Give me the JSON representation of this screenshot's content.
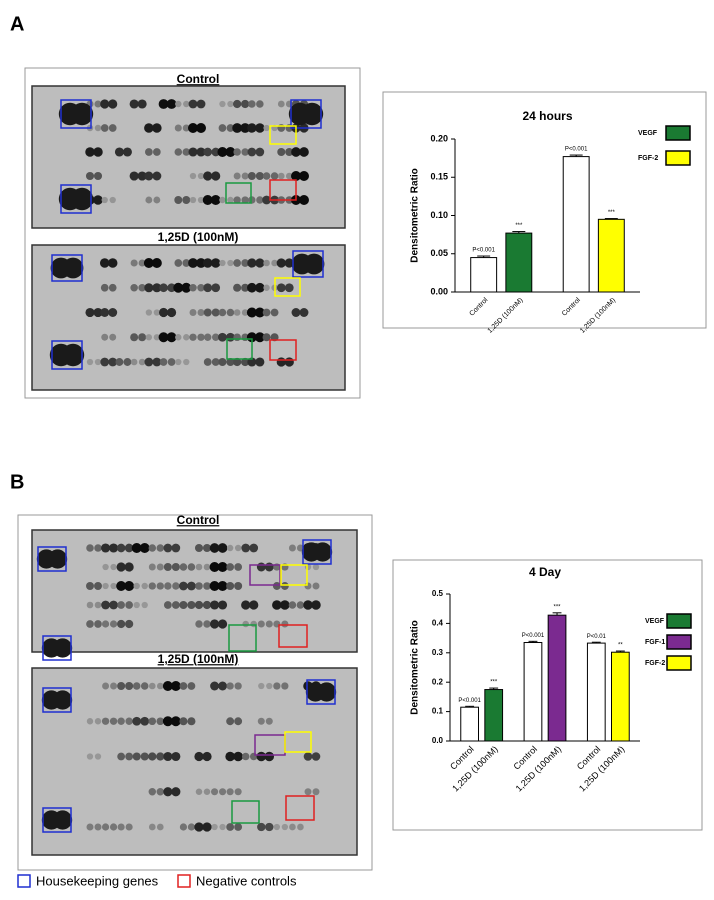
{
  "panel_labels": [
    "A",
    "B"
  ],
  "blot_titles": [
    [
      "Control",
      "1,25D (100nM)"
    ],
    [
      "Control",
      "1,25D (100nM)"
    ]
  ],
  "key": [
    {
      "label": "Housekeeping genes",
      "color": "#1f2fd0"
    },
    {
      "label": "Negative controls",
      "color": "#e02020"
    }
  ],
  "chart_data": [
    {
      "type": "bar",
      "title": "24 hours",
      "y_label": "Densitometric Ratio",
      "categories": [
        "Control",
        "1,25D (100nM)",
        "Control",
        "1,25D (100nM)"
      ],
      "values": [
        0.045,
        0.077,
        0.177,
        0.095
      ],
      "errors": [
        0.002,
        0.002,
        0.002,
        0.001
      ],
      "colors": [
        "#ffffff",
        "#1a7a32",
        "#ffffff",
        "#ffff00"
      ],
      "annotations": [
        "P<0.001",
        "***",
        "P<0.001",
        "***"
      ],
      "legend": [
        {
          "name": "VEGF",
          "color": "#1a7a32"
        },
        {
          "name": "FGF-2",
          "color": "#ffff00"
        }
      ],
      "ylim": [
        0,
        0.2
      ],
      "yticks": [
        {
          "value": 0,
          "label": "0.00"
        },
        {
          "value": 0.05,
          "label": "0.05"
        },
        {
          "value": 0.1,
          "label": "0.10"
        },
        {
          "value": 0.15,
          "label": "0.15"
        },
        {
          "value": 0.2,
          "label": "0.20"
        }
      ]
    },
    {
      "type": "bar",
      "title": "4 Day",
      "y_label": "Densitometric Ratio",
      "categories": [
        "Control",
        "1,25D (100nM)",
        "Control",
        "1,25D (100nM)",
        "Control",
        "1,25D (100nM)"
      ],
      "values": [
        0.115,
        0.175,
        0.335,
        0.428,
        0.333,
        0.302
      ],
      "errors": [
        0.003,
        0.005,
        0.004,
        0.008,
        0.003,
        0.004
      ],
      "colors": [
        "#ffffff",
        "#1a7a32",
        "#ffffff",
        "#7b2a90",
        "#ffffff",
        "#ffff00"
      ],
      "annotations": [
        "P<0.001",
        "***",
        "P<0.001",
        "***",
        "P<0.01",
        "**"
      ],
      "legend": [
        {
          "name": "VEGF",
          "color": "#1a7a32"
        },
        {
          "name": "FGF-1",
          "color": "#7b2a90"
        },
        {
          "name": "FGF-2",
          "color": "#ffff00"
        }
      ],
      "ylim": [
        0,
        0.5
      ],
      "yticks": [
        {
          "value": 0,
          "label": "0.0"
        },
        {
          "value": 0.1,
          "label": "0.1"
        },
        {
          "value": 0.2,
          "label": "0.2"
        },
        {
          "value": 0.3,
          "label": "0.3"
        },
        {
          "value": 0.4,
          "label": "0.4"
        },
        {
          "value": 0.5,
          "label": "0.5"
        }
      ]
    }
  ]
}
